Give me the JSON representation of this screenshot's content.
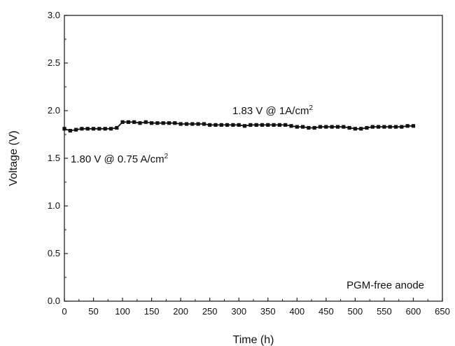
{
  "chart_data": {
    "type": "scatter",
    "title": "",
    "xlabel": "Time (h)",
    "ylabel": "Voltage (V)",
    "xlim": [
      0,
      650
    ],
    "ylim": [
      0.0,
      3.0
    ],
    "x_ticks": [
      0,
      50,
      100,
      150,
      200,
      250,
      300,
      350,
      400,
      450,
      500,
      550,
      600,
      650
    ],
    "x_tick_labels": [
      "0",
      "50",
      "100",
      "150",
      "200",
      "250",
      "300",
      "350",
      "400",
      "450",
      "500",
      "550",
      "600",
      "650"
    ],
    "y_ticks": [
      0.0,
      0.5,
      1.0,
      1.5,
      2.0,
      2.5,
      3.0
    ],
    "y_tick_labels": [
      "0.0",
      "0.5",
      "1.0",
      "1.5",
      "2.0",
      "2.5",
      "3.0"
    ],
    "grid": false,
    "series": [
      {
        "color": "#111111",
        "x": [
          0,
          10,
          20,
          30,
          40,
          50,
          60,
          70,
          80,
          90,
          100,
          110,
          120,
          130,
          140,
          150,
          160,
          170,
          180,
          190,
          200,
          210,
          220,
          230,
          240,
          250,
          260,
          270,
          280,
          290,
          300,
          310,
          320,
          330,
          340,
          350,
          360,
          370,
          380,
          390,
          400,
          410,
          420,
          430,
          440,
          450,
          460,
          470,
          480,
          490,
          500,
          510,
          520,
          530,
          540,
          550,
          560,
          570,
          580,
          590,
          600
        ],
        "y": [
          1.81,
          1.79,
          1.8,
          1.81,
          1.81,
          1.81,
          1.81,
          1.81,
          1.81,
          1.82,
          1.88,
          1.88,
          1.88,
          1.87,
          1.88,
          1.87,
          1.87,
          1.87,
          1.87,
          1.87,
          1.86,
          1.86,
          1.86,
          1.86,
          1.86,
          1.85,
          1.85,
          1.85,
          1.85,
          1.85,
          1.85,
          1.84,
          1.85,
          1.85,
          1.85,
          1.85,
          1.85,
          1.85,
          1.85,
          1.84,
          1.83,
          1.83,
          1.82,
          1.82,
          1.83,
          1.83,
          1.83,
          1.83,
          1.83,
          1.82,
          1.81,
          1.81,
          1.82,
          1.83,
          1.83,
          1.83,
          1.83,
          1.83,
          1.83,
          1.84,
          1.84
        ]
      }
    ],
    "annotations": [
      {
        "id": "high",
        "text": "1.83 V @ 1A/cm",
        "sup": "2"
      },
      {
        "id": "low",
        "text": "1.80 V @ 0.75 A/cm",
        "sup": "2"
      },
      {
        "id": "anode",
        "text": "PGM-free anode",
        "sup": ""
      }
    ]
  }
}
